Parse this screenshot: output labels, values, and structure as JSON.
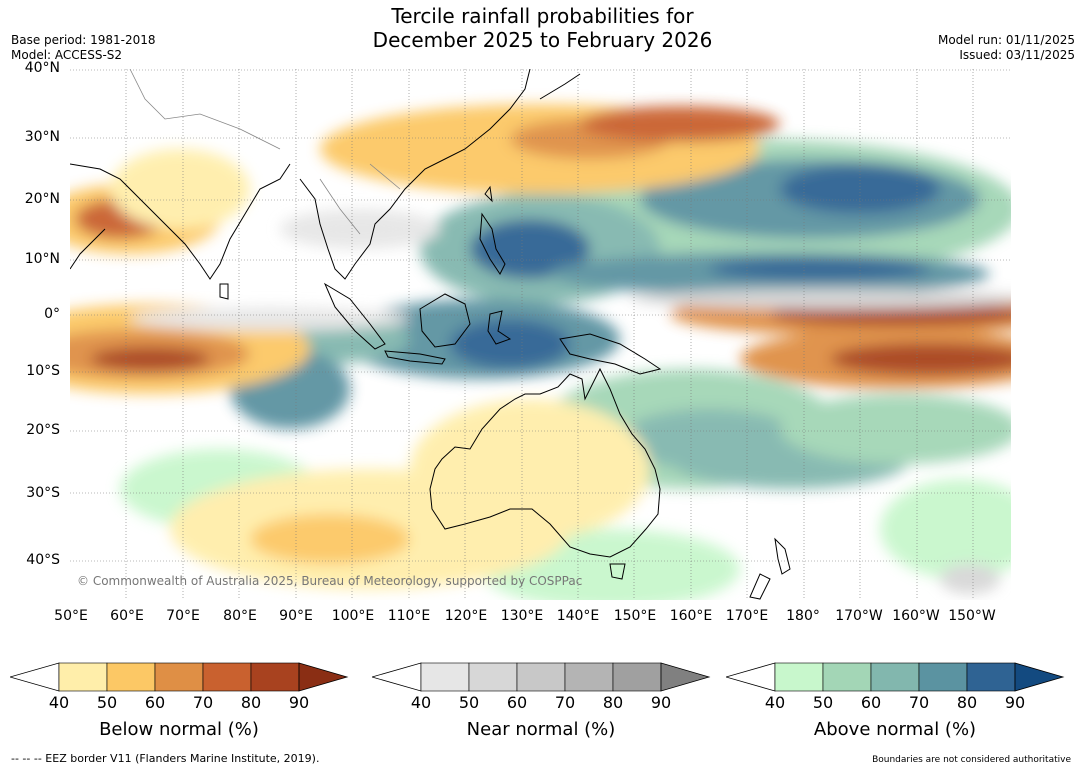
{
  "title": {
    "line1": "Tercile rainfall probabilities for",
    "line2": "December 2025 to February 2026"
  },
  "meta_left": {
    "base_period": "Base period: 1981-2018",
    "model": "Model: ACCESS-S2"
  },
  "meta_right": {
    "model_run": "Model run: 01/11/2025",
    "issued": "Issued: 03/11/2025"
  },
  "copyright": "© Commonwealth of Australia 2025, Bureau of Meteorology, supported by COSPPac",
  "latitude_labels": [
    "40°N",
    "30°N",
    "20°N",
    "10°N",
    "0°",
    "10°S",
    "20°S",
    "30°S",
    "40°S"
  ],
  "longitude_labels": [
    "50°E",
    "60°E",
    "70°E",
    "80°E",
    "90°E",
    "100°E",
    "110°E",
    "120°E",
    "130°E",
    "140°E",
    "150°E",
    "160°E",
    "170°E",
    "180°",
    "170°W",
    "160°W",
    "150°W"
  ],
  "colorbars": [
    {
      "name": "below",
      "label": "Below normal (%)",
      "ticks": [
        "40",
        "50",
        "60",
        "70",
        "80",
        "90"
      ],
      "colors": [
        "#ffeeaa",
        "#fcc865",
        "#df8f45",
        "#c9612f",
        "#a8421f",
        "#8a2e14"
      ]
    },
    {
      "name": "near",
      "label": "Near normal (%)",
      "ticks": [
        "40",
        "50",
        "60",
        "70",
        "80",
        "90"
      ],
      "colors": [
        "#e6e6e6",
        "#d7d7d7",
        "#c8c8c8",
        "#b4b4b4",
        "#a0a0a0",
        "#808080"
      ]
    },
    {
      "name": "above",
      "label": "Above normal (%)",
      "ticks": [
        "40",
        "50",
        "60",
        "70",
        "80",
        "90"
      ],
      "colors": [
        "#c8f7cc",
        "#a3d6b6",
        "#82b7ae",
        "#5b93a1",
        "#2f6393",
        "#134a80"
      ]
    }
  ],
  "footnote_left": "--  --  -- EEZ border V11 (Flanders Marine Institute, 2019).",
  "footnote_right": "Boundaries are not considered authoritative"
}
